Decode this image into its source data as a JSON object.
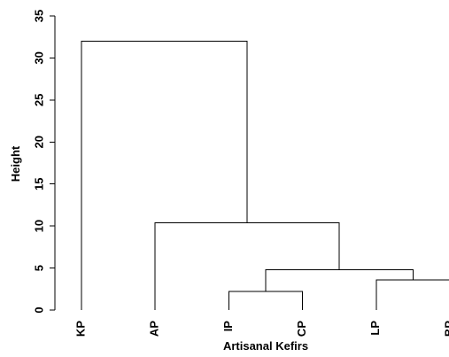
{
  "chart_data": {
    "type": "dendrogram",
    "xlabel": "Artisanal Kefirs",
    "ylabel": "Height",
    "ylim": [
      0,
      35
    ],
    "yticks": [
      0,
      5,
      10,
      15,
      20,
      25,
      30,
      35
    ],
    "leaves": [
      "KP",
      "AP",
      "IP",
      "CP",
      "LP",
      "BP"
    ],
    "merges": [
      {
        "left": "IP",
        "right": "CP",
        "height": 2.2
      },
      {
        "left": "LP",
        "right": "BP",
        "height": 3.6
      },
      {
        "left": "IP+CP",
        "right": "LP+BP",
        "height": 4.8
      },
      {
        "left": "AP",
        "right": "IP+CP+LP+BP",
        "height": 10.4
      },
      {
        "left": "KP",
        "right": "AP+IP+CP+LP+BP",
        "height": 32.0
      }
    ]
  }
}
